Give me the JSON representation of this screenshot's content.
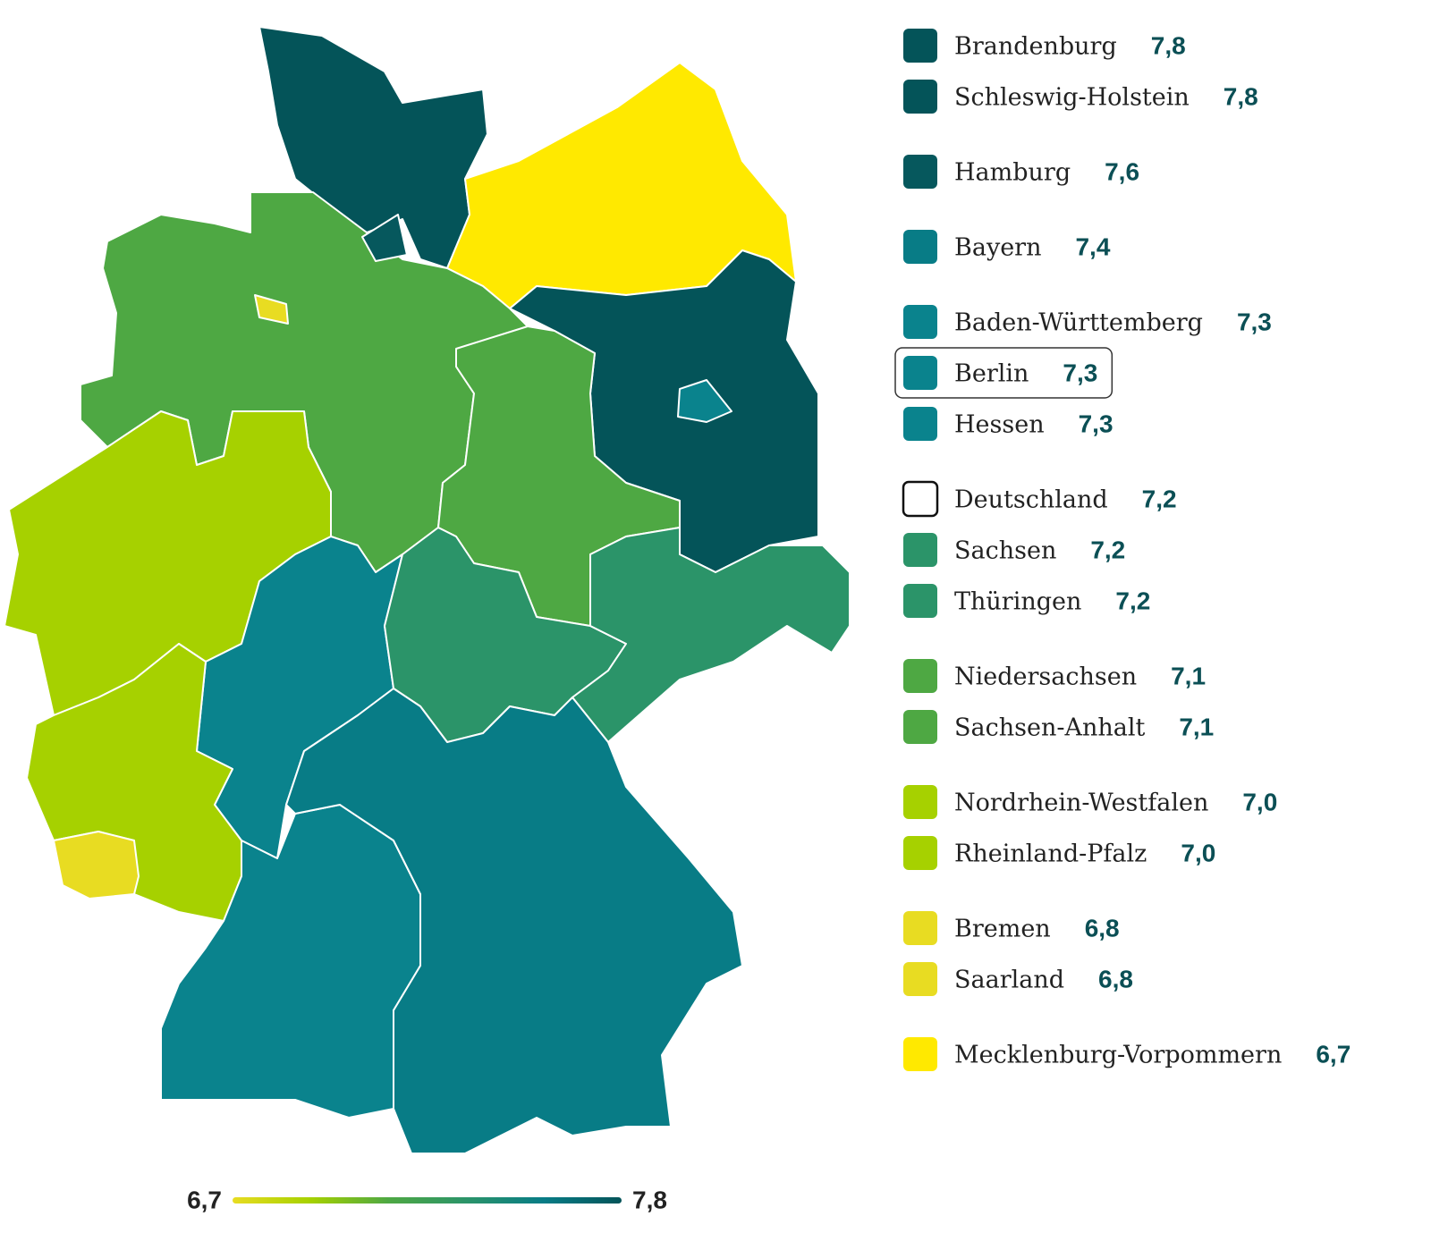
{
  "chart_data": {
    "type": "choropleth",
    "categories": [
      "Brandenburg",
      "Schleswig-Holstein",
      "Hamburg",
      "Bayern",
      "Baden-Württemberg",
      "Berlin",
      "Hessen",
      "Deutschland",
      "Sachsen",
      "Thüringen",
      "Niedersachsen",
      "Sachsen-Anhalt",
      "Nordrhein-Westfalen",
      "Rheinland-Pfalz",
      "Bremen",
      "Saarland",
      "Mecklenburg-Vorpommern"
    ],
    "values": [
      7.8,
      7.8,
      7.6,
      7.4,
      7.3,
      7.3,
      7.3,
      7.2,
      7.2,
      7.2,
      7.1,
      7.1,
      7.0,
      7.0,
      6.8,
      6.8,
      6.7
    ],
    "value_labels": [
      "7,8",
      "7,8",
      "7,6",
      "7,4",
      "7,3",
      "7,3",
      "7,3",
      "7,2",
      "7,2",
      "7,2",
      "7,1",
      "7,1",
      "7,0",
      "7,0",
      "6,8",
      "6,8",
      "6,7"
    ],
    "colors": [
      "#045459",
      "#045459",
      "#06585d",
      "#087c86",
      "#0a838d",
      "#0a838d",
      "#0a838d",
      "#ffffff",
      "#2b9469",
      "#2b9469",
      "#4ea843",
      "#4ea843",
      "#a6d100",
      "#a6d100",
      "#e8dc22",
      "#e8dc22",
      "#ffe900"
    ],
    "selected": "Berlin",
    "colorbar": {
      "ticks": [
        {
          "value": 6.7,
          "label": "6,7"
        },
        {
          "value": 7.8,
          "label": "7,8"
        }
      ],
      "colors": [
        "#e8dc22",
        "#a6d100",
        "#4ea843",
        "#2b9469",
        "#087c86",
        "#045459"
      ]
    }
  }
}
